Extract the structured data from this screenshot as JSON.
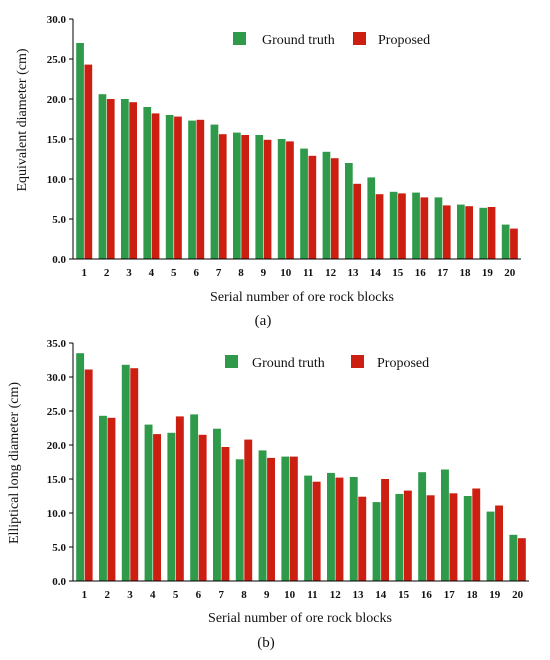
{
  "colors": {
    "ground_truth": "#2e9a4a",
    "proposed": "#cc1f12"
  },
  "chart_data": [
    {
      "type": "bar",
      "caption": "(a)",
      "xlabel": "Serial number of ore rock blocks",
      "ylabel": "Equivalent diameter (cm)",
      "ylim": [
        0,
        30
      ],
      "yticks": [
        "0.0",
        "5.0",
        "10.0",
        "15.0",
        "20.0",
        "25.0",
        "30.0"
      ],
      "categories": [
        "1",
        "2",
        "3",
        "4",
        "5",
        "6",
        "7",
        "8",
        "9",
        "10",
        "11",
        "12",
        "13",
        "14",
        "15",
        "16",
        "17",
        "18",
        "19",
        "20"
      ],
      "legend_position": "top",
      "series": [
        {
          "name": "Ground truth",
          "values": [
            27.0,
            20.6,
            20.0,
            19.0,
            18.0,
            17.3,
            16.8,
            15.8,
            15.5,
            15.0,
            13.8,
            13.4,
            12.0,
            10.2,
            8.4,
            8.3,
            7.7,
            6.8,
            6.4,
            4.3
          ]
        },
        {
          "name": "Proposed",
          "values": [
            24.3,
            20.0,
            19.6,
            18.2,
            17.8,
            17.4,
            15.6,
            15.5,
            14.9,
            14.7,
            12.9,
            12.6,
            9.4,
            8.1,
            8.2,
            7.7,
            6.7,
            6.6,
            6.5,
            3.8
          ]
        }
      ]
    },
    {
      "type": "bar",
      "caption": "(b)",
      "xlabel": "Serial number of ore rock blocks",
      "ylabel": "Elliptical long diameter (cm)",
      "ylim": [
        0,
        35
      ],
      "yticks": [
        "0.0",
        "5.0",
        "10.0",
        "15.0",
        "20.0",
        "25.0",
        "30.0",
        "35.0"
      ],
      "categories": [
        "1",
        "2",
        "3",
        "4",
        "5",
        "6",
        "7",
        "8",
        "9",
        "10",
        "11",
        "12",
        "13",
        "14",
        "15",
        "16",
        "17",
        "18",
        "19",
        "20"
      ],
      "legend_position": "top",
      "series": [
        {
          "name": "Ground truth",
          "values": [
            33.5,
            24.3,
            31.8,
            23.0,
            21.8,
            24.5,
            22.4,
            17.9,
            19.2,
            18.3,
            15.5,
            15.9,
            15.3,
            11.6,
            12.8,
            16.0,
            16.4,
            12.5,
            10.2,
            6.8
          ]
        },
        {
          "name": "Proposed",
          "values": [
            31.1,
            24.0,
            31.3,
            21.6,
            24.2,
            21.5,
            19.7,
            20.8,
            18.1,
            18.3,
            14.6,
            15.2,
            12.4,
            15.0,
            13.3,
            12.6,
            12.9,
            13.6,
            11.1,
            6.3
          ]
        }
      ]
    }
  ]
}
